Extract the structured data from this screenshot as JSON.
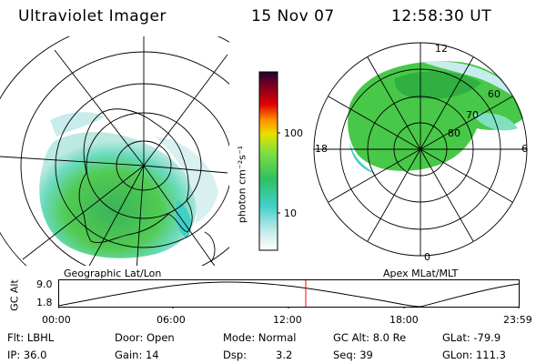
{
  "header": {
    "instrument": "Ultraviolet Imager",
    "date": "15 Nov 07",
    "time": "12:58:30 UT"
  },
  "left_panel": {
    "caption": "Geographic Lat/Lon"
  },
  "right_panel": {
    "caption": "Apex MLat/MLT",
    "mlt_labels": [
      "12",
      "18",
      "6",
      "0"
    ],
    "mlat_labels": [
      "60",
      "70",
      "80"
    ]
  },
  "colorbar": {
    "unit_label": "photon cm⁻²s⁻¹",
    "tick_labels": [
      "100",
      "10"
    ],
    "scale": "log",
    "colors": [
      "#ffffff",
      "#c8ecec",
      "#40d0c8",
      "#30c060",
      "#80e040",
      "#e8e000",
      "#ff9000",
      "#e00000",
      "#800020",
      "#200030"
    ]
  },
  "altitude_plot": {
    "ylabel": "GC Alt",
    "y_ticks": [
      "9.0",
      "1.8"
    ],
    "x_ticks": [
      "00:00",
      "06:00",
      "12:00",
      "18:00",
      "23:59"
    ],
    "current_marker_color": "#ff0000"
  },
  "info": {
    "filter": "Flt: LBHL",
    "ip": "IP: 36.0",
    "door": "Door: Open",
    "gain": "Gain: 14",
    "mode": "Mode: Normal",
    "dsp_label": "Dsp:",
    "dsp_value": "3.2",
    "gc_alt": "GC Alt: 8.0 Re",
    "seq": "Seq: 39",
    "glat": "GLat: -79.9",
    "glon": "GLon: 111.3"
  }
}
